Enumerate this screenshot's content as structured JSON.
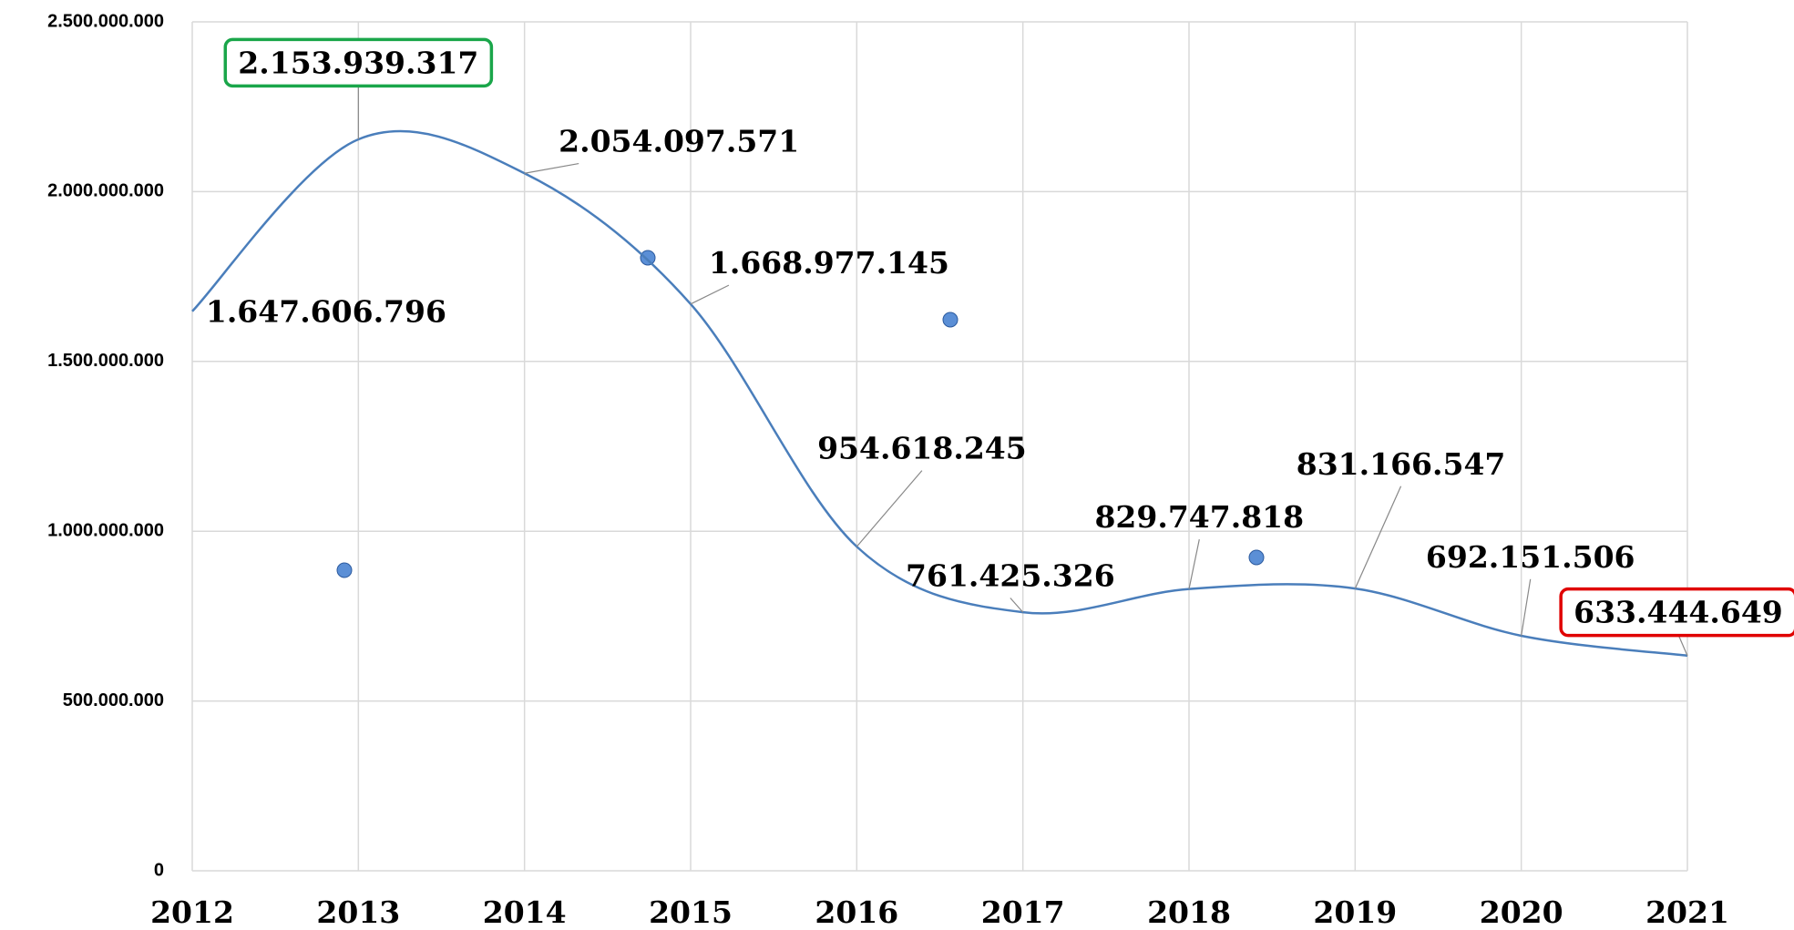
{
  "chart_data": {
    "type": "line",
    "x": [
      2012,
      2013,
      2014,
      2015,
      2016,
      2017,
      2018,
      2019,
      2020,
      2021
    ],
    "series": [
      {
        "color": "#4a7ebb",
        "values": [
          1647606796,
          2153939317,
          2054097571,
          1668977145,
          954618245,
          761425326,
          829747818,
          831166547,
          692151506,
          633444649
        ],
        "value_labels": [
          "1.647.606.796",
          "2.153.939.317",
          "2.054.097.571",
          "1.668.977.145",
          "954.618.245",
          "761.425.326",
          "829.747.818",
          "831.166.547",
          "692.151.506",
          "633.444.649"
        ]
      }
    ],
    "xlim": [
      2012,
      2021
    ],
    "xticks": [
      2012,
      2013,
      2014,
      2015,
      2016,
      2017,
      2018,
      2019,
      2020,
      2021
    ],
    "ylim": [
      0,
      2500000000
    ],
    "yticks": [
      0,
      {
        "value": 500000000,
        "label": "500.000.000"
      },
      {
        "value": 1000000000,
        "label": "1.000.000.000"
      },
      {
        "value": 1500000000,
        "label": "1.500.000.000"
      },
      {
        "value": 2000000000,
        "label": "2.000.000.000"
      },
      {
        "value": 2500000000,
        "label": "2.500.000.000"
      }
    ],
    "grid": true,
    "max_box_color": "#1aa64a",
    "last_box_color": "#e00000"
  }
}
